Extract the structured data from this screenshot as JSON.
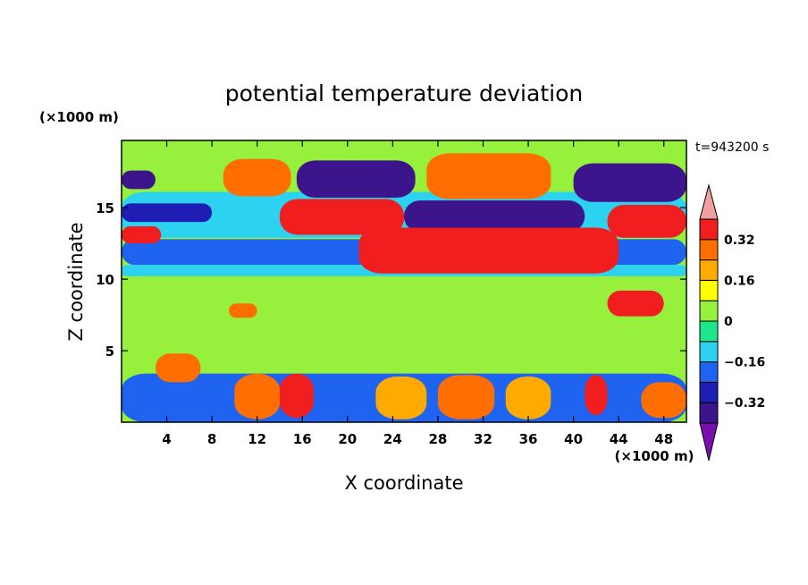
{
  "chart_data": {
    "type": "heatmap",
    "title": "potential temperature deviation",
    "xlabel": "X coordinate",
    "ylabel": "Z coordinate",
    "x_unit": "(×1000 m)",
    "y_unit": "(×1000 m)",
    "time_label": "t=943200 s",
    "xlim": [
      0,
      50
    ],
    "ylim": [
      0,
      19.7
    ],
    "x_ticks": [
      4,
      8,
      12,
      16,
      20,
      24,
      28,
      32,
      36,
      40,
      44,
      48
    ],
    "y_ticks": [
      5,
      10,
      15
    ],
    "colorbar": {
      "levels": [
        -0.4,
        -0.32,
        -0.24,
        -0.16,
        -0.08,
        0,
        0.08,
        0.16,
        0.24,
        0.32,
        0.4
      ],
      "colors": [
        "#7a0fb0",
        "#3c148c",
        "#1e1eb4",
        "#1e64f0",
        "#2dd2f0",
        "#1ee68c",
        "#96f03c",
        "#ffff00",
        "#ffaa00",
        "#ff6e00",
        "#f01e1e",
        "#f0a0a0"
      ],
      "labels": [
        {
          "level": 0.32,
          "text": "0.32"
        },
        {
          "level": 0.16,
          "text": "0.16"
        },
        {
          "level": 0,
          "text": "0"
        },
        {
          "level": -0.16,
          "text": "−0.16"
        },
        {
          "level": -0.32,
          "text": "−0.32"
        }
      ]
    },
    "features": [
      {
        "x0": 0,
        "x1": 50,
        "z0": 12.9,
        "z1": 16.1,
        "value": -0.12
      },
      {
        "x0": 0,
        "x1": 50,
        "z0": 11.0,
        "z1": 12.8,
        "value": -0.22
      },
      {
        "x0": 0,
        "x1": 50,
        "z0": 10.2,
        "z1": 11.0,
        "value": -0.12
      },
      {
        "x0": 0,
        "x1": 50,
        "z0": 8.5,
        "z1": 10.2,
        "value": 0.04
      },
      {
        "x0": 0,
        "x1": 50,
        "z0": 0,
        "z1": 3.4,
        "value": -0.18
      },
      {
        "x0": 0,
        "x1": 3,
        "z0": 16.3,
        "z1": 17.6,
        "value": -0.34
      },
      {
        "x0": 9,
        "x1": 15,
        "z0": 15.8,
        "z1": 18.4,
        "value": 0.3
      },
      {
        "x0": 15.5,
        "x1": 26,
        "z0": 15.7,
        "z1": 18.3,
        "value": -0.34
      },
      {
        "x0": 27,
        "x1": 38,
        "z0": 15.6,
        "z1": 18.8,
        "value": 0.3
      },
      {
        "x0": 40,
        "x1": 50,
        "z0": 15.4,
        "z1": 18.1,
        "value": -0.34
      },
      {
        "x0": 14,
        "x1": 25,
        "z0": 13.1,
        "z1": 15.6,
        "value": 0.35
      },
      {
        "x0": 25,
        "x1": 41,
        "z0": 13.3,
        "z1": 15.5,
        "value": -0.34
      },
      {
        "x0": 0,
        "x1": 8,
        "z0": 14.0,
        "z1": 15.3,
        "value": -0.32
      },
      {
        "x0": 0,
        "x1": 3.5,
        "z0": 12.5,
        "z1": 13.7,
        "value": 0.32
      },
      {
        "x0": 21,
        "x1": 44,
        "z0": 10.4,
        "z1": 13.6,
        "value": 0.35
      },
      {
        "x0": 43,
        "x1": 50,
        "z0": 12.9,
        "z1": 15.2,
        "value": 0.33
      },
      {
        "x0": 43,
        "x1": 48,
        "z0": 7.4,
        "z1": 9.2,
        "value": 0.33
      },
      {
        "x0": 9.5,
        "x1": 12,
        "z0": 7.3,
        "z1": 8.3,
        "value": 0.3
      },
      {
        "x0": 3,
        "x1": 7,
        "z0": 2.8,
        "z1": 4.8,
        "value": 0.3
      },
      {
        "x0": 10,
        "x1": 14,
        "z0": 0.2,
        "z1": 3.4,
        "value": 0.24
      },
      {
        "x0": 14,
        "x1": 17,
        "z0": 0.3,
        "z1": 3.4,
        "value": 0.34
      },
      {
        "x0": 22.5,
        "x1": 27,
        "z0": 0.2,
        "z1": 3.2,
        "value": 0.22
      },
      {
        "x0": 28,
        "x1": 33,
        "z0": 0.2,
        "z1": 3.3,
        "value": 0.26
      },
      {
        "x0": 34,
        "x1": 38,
        "z0": 0.2,
        "z1": 3.2,
        "value": 0.2
      },
      {
        "x0": 41,
        "x1": 43,
        "z0": 0.5,
        "z1": 3.3,
        "value": 0.34
      },
      {
        "x0": 46,
        "x1": 50,
        "z0": 0.3,
        "z1": 2.8,
        "value": 0.3
      }
    ]
  }
}
